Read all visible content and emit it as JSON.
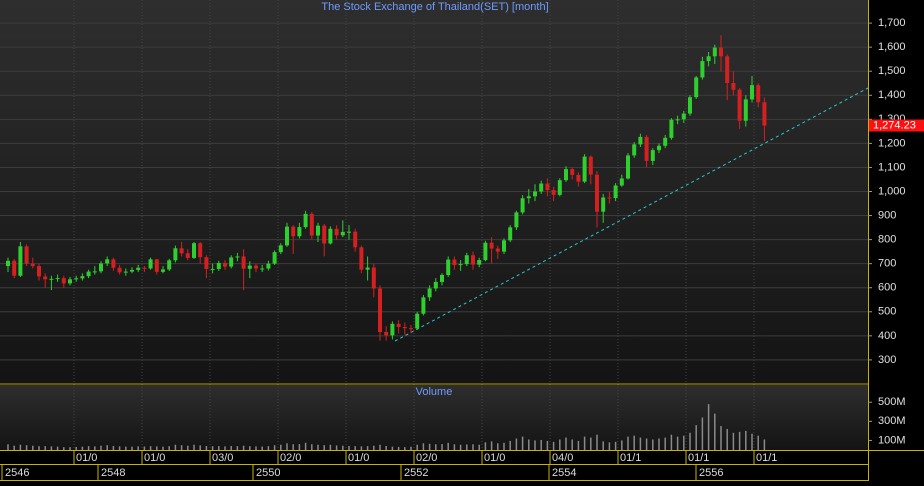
{
  "chart_data": [
    {
      "type": "candlestick",
      "title": "The Stock Exchange of Thailand(SET) [month]",
      "open": [
        690,
        712,
        650,
        772,
        700,
        690,
        647,
        635,
        637,
        640,
        618,
        635,
        639,
        648,
        667,
        668,
        701,
        718,
        683,
        664,
        667,
        674,
        683,
        680,
        718,
        666,
        676,
        714,
        764,
        743,
        724,
        785,
        727,
        678,
        678,
        703,
        688,
        726,
        730,
        679,
        692,
        680,
        680,
        700,
        748,
        776,
        854,
        814,
        852,
        907,
        817,
        858,
        784,
        845,
        818,
        832,
        833,
        768,
        675,
        684,
        597,
        416,
        402,
        450,
        437,
        432,
        431,
        492,
        560,
        597,
        624,
        653,
        717,
        694,
        698,
        735,
        696,
        715,
        787,
        763,
        750,
        797,
        851,
        913,
        972,
        980,
        1000,
        1033,
        1006,
        986,
        1047,
        1093,
        1069,
        1041,
        1145,
        1070,
        916,
        975,
        973,
        1025,
        1054,
        1150,
        1196,
        1227,
        1127,
        1172,
        1190,
        1223,
        1298,
        1300,
        1324,
        1392,
        1474,
        1542,
        1562,
        1598,
        1562,
        1451,
        1423,
        1294,
        1383,
        1442,
        1371
      ],
      "high": [
        725,
        720,
        790,
        780,
        725,
        700,
        660,
        650,
        655,
        650,
        645,
        650,
        660,
        675,
        690,
        710,
        730,
        725,
        695,
        680,
        685,
        695,
        690,
        725,
        720,
        690,
        720,
        775,
        790,
        760,
        790,
        790,
        735,
        700,
        712,
        715,
        735,
        745,
        760,
        710,
        700,
        695,
        712,
        755,
        785,
        870,
        860,
        870,
        920,
        915,
        870,
        865,
        855,
        860,
        880,
        860,
        845,
        775,
        730,
        700,
        610,
        440,
        460,
        465,
        455,
        445,
        500,
        570,
        610,
        640,
        660,
        730,
        730,
        715,
        745,
        750,
        725,
        795,
        810,
        775,
        805,
        860,
        920,
        985,
        1010,
        1030,
        1045,
        1055,
        1020,
        1055,
        1105,
        1100,
        1080,
        1155,
        1150,
        1085,
        990,
        1000,
        1035,
        1070,
        1160,
        1205,
        1240,
        1235,
        1180,
        1200,
        1235,
        1305,
        1315,
        1335,
        1400,
        1480,
        1560,
        1580,
        1610,
        1650,
        1570,
        1500,
        1430,
        1400,
        1480,
        1450,
        1390
      ],
      "low": [
        665,
        640,
        645,
        690,
        680,
        630,
        600,
        590,
        625,
        600,
        610,
        625,
        630,
        640,
        655,
        660,
        690,
        670,
        655,
        650,
        660,
        665,
        665,
        675,
        655,
        660,
        670,
        705,
        730,
        715,
        720,
        700,
        640,
        660,
        670,
        675,
        680,
        710,
        590,
        640,
        665,
        665,
        672,
        695,
        740,
        770,
        740,
        805,
        845,
        800,
        790,
        730,
        780,
        800,
        810,
        800,
        750,
        660,
        630,
        560,
        380,
        380,
        385,
        410,
        405,
        410,
        425,
        485,
        545,
        585,
        610,
        645,
        675,
        670,
        690,
        675,
        685,
        710,
        700,
        720,
        740,
        790,
        840,
        905,
        950,
        960,
        990,
        980,
        960,
        980,
        1040,
        1050,
        1020,
        1035,
        1030,
        850,
        870,
        950,
        960,
        1020,
        1050,
        1140,
        1185,
        1100,
        1110,
        1160,
        1180,
        1215,
        1280,
        1285,
        1315,
        1385,
        1465,
        1520,
        1530,
        1500,
        1380,
        1400,
        1260,
        1270,
        1370,
        1350,
        1210
      ],
      "close": [
        712,
        650,
        772,
        700,
        690,
        647,
        635,
        637,
        640,
        618,
        635,
        639,
        648,
        667,
        668,
        701,
        718,
        683,
        664,
        667,
        674,
        683,
        680,
        718,
        666,
        676,
        714,
        764,
        743,
        724,
        785,
        727,
        678,
        678,
        703,
        688,
        726,
        730,
        679,
        692,
        680,
        680,
        700,
        748,
        776,
        854,
        814,
        852,
        907,
        817,
        858,
        784,
        845,
        818,
        832,
        833,
        768,
        675,
        684,
        597,
        416,
        402,
        450,
        437,
        432,
        431,
        492,
        560,
        597,
        624,
        653,
        717,
        694,
        698,
        735,
        696,
        715,
        787,
        763,
        750,
        797,
        851,
        913,
        972,
        980,
        1000,
        1033,
        1006,
        986,
        1047,
        1093,
        1069,
        1041,
        1145,
        1070,
        916,
        975,
        973,
        1025,
        1054,
        1150,
        1196,
        1227,
        1127,
        1172,
        1190,
        1223,
        1298,
        1300,
        1324,
        1392,
        1474,
        1542,
        1562,
        1598,
        1562,
        1451,
        1423,
        1294,
        1383,
        1442,
        1371,
        1274
      ],
      "up_color": "#2fcf2f",
      "down_color": "#d42020",
      "ylim": [
        204,
        1796
      ],
      "yticks": [
        300,
        400,
        500,
        600,
        700,
        800,
        900,
        {
          "value": 1000,
          "label": "1,000"
        },
        {
          "value": 1100,
          "label": "1,100"
        },
        {
          "value": 1200,
          "label": "1,200"
        },
        {
          "value": 1300,
          "label": "1,300"
        },
        {
          "value": 1400,
          "label": "1,400"
        },
        {
          "value": 1500,
          "label": "1,500"
        },
        {
          "value": 1600,
          "label": "1,600"
        },
        {
          "value": 1700,
          "label": "1,700"
        }
      ],
      "grid": true,
      "last_price": {
        "value": 1274.23,
        "label": "1,274.23"
      }
    },
    {
      "type": "bar",
      "title": "Volume",
      "color": "#8a8a8a",
      "values": [
        60,
        45,
        55,
        50,
        45,
        40,
        40,
        38,
        35,
        30,
        30,
        32,
        35,
        40,
        38,
        45,
        50,
        42,
        38,
        35,
        35,
        38,
        36,
        40,
        38,
        35,
        40,
        55,
        50,
        45,
        55,
        48,
        42,
        40,
        40,
        38,
        42,
        40,
        45,
        40,
        38,
        36,
        40,
        50,
        55,
        70,
        60,
        62,
        75,
        60,
        55,
        50,
        55,
        48,
        45,
        42,
        40,
        38,
        40,
        45,
        55,
        42,
        35,
        32,
        30,
        35,
        55,
        70,
        65,
        60,
        62,
        75,
        60,
        55,
        58,
        60,
        55,
        80,
        90,
        70,
        75,
        95,
        120,
        140,
        110,
        100,
        105,
        95,
        85,
        110,
        130,
        110,
        95,
        140,
        130,
        160,
        90,
        80,
        85,
        100,
        140,
        150,
        130,
        120,
        110,
        120,
        130,
        160,
        140,
        150,
        180,
        260,
        340,
        480,
        380,
        250,
        220,
        180,
        190,
        200,
        170,
        150,
        110
      ],
      "ylim": [
        0,
        680
      ],
      "yticks": [
        {
          "value": 100,
          "label": "100M"
        },
        {
          "value": 300,
          "label": "300M"
        },
        {
          "value": 500,
          "label": "500M"
        }
      ]
    }
  ],
  "time_axis": {
    "date_labels": [
      "01/0",
      "01/0",
      "03/0",
      "02/0",
      "01/0",
      "02/0",
      "01/0",
      "04/0",
      "01/1",
      "01/1",
      "01/1"
    ],
    "year_labels": [
      "2546",
      "2548",
      "2550",
      "2552",
      "2554",
      "2556"
    ]
  }
}
